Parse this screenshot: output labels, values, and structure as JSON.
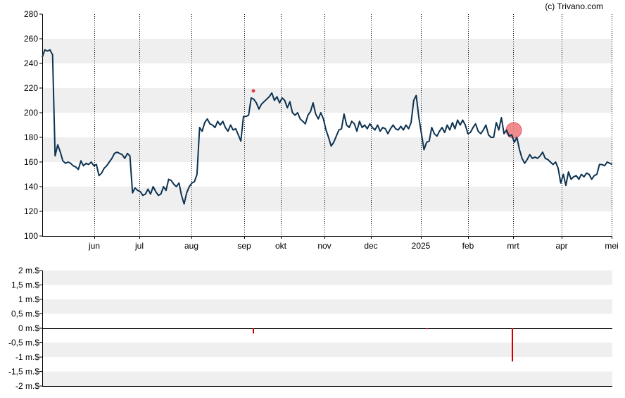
{
  "copyright": "(c) Trivano.com",
  "colors": {
    "price_line": "#0d3352",
    "band": "#efefef",
    "grid": "#000000",
    "insider": "#cc0000",
    "highlight": "#f08080",
    "marker": "#e0404a"
  },
  "chart_data": [
    {
      "type": "line",
      "x_ticks": [
        "jun",
        "jul",
        "aug",
        "sep",
        "okt",
        "nov",
        "dec",
        "2025",
        "feb",
        "mrt",
        "apr",
        "mei"
      ],
      "y_ticks": [
        "100",
        "120",
        "140",
        "160",
        "180",
        "200",
        "220",
        "240",
        "260",
        "280"
      ],
      "ylim": [
        100,
        280
      ],
      "grid": true,
      "series": [
        {
          "values": [
            245,
            251,
            250,
            251,
            247,
            165,
            174,
            168,
            161,
            159,
            160,
            159,
            157,
            156,
            154,
            161,
            157,
            159,
            158,
            160,
            157,
            158,
            149,
            151,
            155,
            157,
            160,
            163,
            167,
            168,
            167,
            166,
            163,
            167,
            165,
            135,
            139,
            137,
            136,
            133,
            134,
            138,
            134,
            140,
            136,
            133,
            134,
            140,
            137,
            146,
            145,
            142,
            140,
            143,
            133,
            126,
            135,
            140,
            143,
            144,
            150,
            188,
            185,
            192,
            195,
            191,
            190,
            188,
            193,
            190,
            193,
            188,
            185,
            190,
            186,
            187,
            182,
            177,
            197,
            197,
            198,
            212,
            211,
            208,
            203,
            207,
            209,
            211,
            213,
            216,
            210,
            213,
            208,
            212,
            210,
            204,
            209,
            200,
            198,
            200,
            195,
            193,
            191,
            198,
            201,
            208,
            199,
            195,
            200,
            195,
            186,
            180,
            173,
            176,
            181,
            186,
            187,
            199,
            190,
            188,
            193,
            191,
            185,
            193,
            188,
            190,
            187,
            191,
            188,
            186,
            190,
            185,
            188,
            187,
            183,
            187,
            190,
            187,
            186,
            189,
            186,
            190,
            187,
            192,
            210,
            214,
            196,
            183,
            170,
            176,
            177,
            188,
            183,
            181,
            185,
            188,
            184,
            190,
            186,
            192,
            187,
            194,
            190,
            194,
            190,
            183,
            184,
            188,
            191,
            185,
            183,
            186,
            190,
            182,
            180,
            180,
            192,
            186,
            196,
            183,
            186,
            181,
            182,
            176,
            180,
            170,
            163,
            159,
            162,
            166,
            163,
            164,
            163,
            165,
            168,
            163,
            162,
            160,
            158,
            160,
            155,
            143,
            150,
            141,
            152,
            146,
            148,
            149,
            146,
            150,
            148,
            151,
            150,
            146,
            149,
            150,
            158,
            158,
            157,
            160,
            159,
            158
          ]
        }
      ]
    },
    {
      "type": "bar",
      "y_ticks": [
        "2 m.$",
        "1,5 m.$",
        "1 m.$",
        "0,5 m.$",
        "0 m.$",
        "-0,5 m.$",
        "-1 m.$",
        "-1,5 m.$",
        "-2 m.$"
      ],
      "ylim": [
        -2,
        2
      ],
      "grid": true,
      "series": [
        {
          "values": [
            -0.18,
            -0.03,
            -1.15
          ]
        }
      ]
    }
  ]
}
